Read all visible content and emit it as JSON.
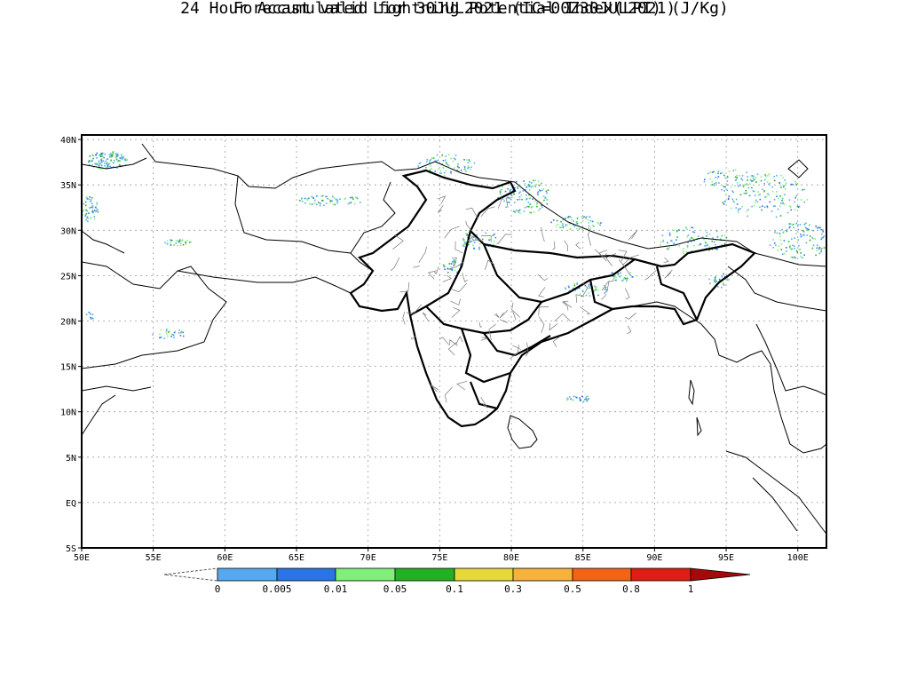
{
  "title": {
    "line1": "24 Hour Accumulated Lightning Potential Index(LPI) (J/Kg)",
    "line2": "Forecast valid for 30JUL2021 (IC=00Z30JUL2021)"
  },
  "map": {
    "lon_range": [
      50,
      102
    ],
    "lat_range": [
      -5,
      40.5
    ],
    "lon_ticks": [
      "50E",
      "55E",
      "60E",
      "65E",
      "70E",
      "75E",
      "80E",
      "85E",
      "90E",
      "95E",
      "100E"
    ],
    "lat_ticks": [
      "40N",
      "35N",
      "30N",
      "25N",
      "20N",
      "15N",
      "10N",
      "5N",
      "EQ",
      "5S"
    ],
    "grid": "dotted"
  },
  "colorbar": {
    "labels": [
      "0",
      "0.005",
      "0.01",
      "0.05",
      "0.1",
      "0.3",
      "0.5",
      "0.8",
      "1"
    ],
    "colors": [
      "#ffffff",
      "#56a9f0",
      "#2a74e6",
      "#80f07a",
      "#23b024",
      "#e6d83a",
      "#f7b23b",
      "#f46415",
      "#dc1e14",
      "#a50a0a"
    ]
  }
}
